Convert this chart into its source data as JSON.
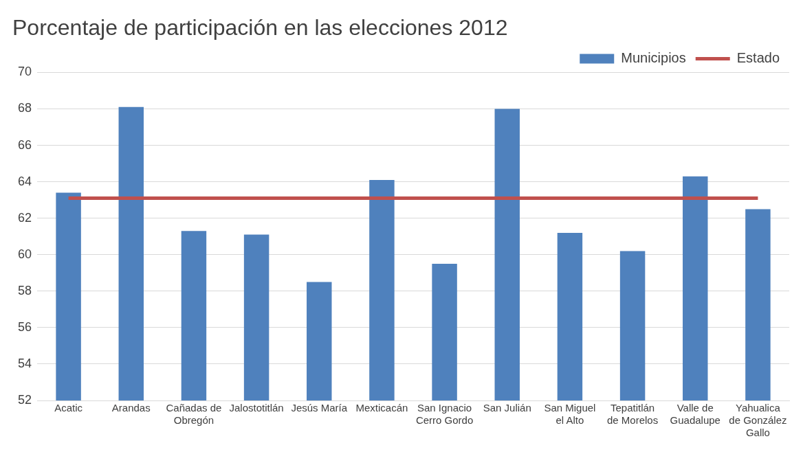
{
  "chart_data": {
    "type": "bar",
    "title": "Porcentaje de participación en las elecciones 2012",
    "categories": [
      "Acatic",
      "Arandas",
      "Cañadas de Obregón",
      "Jalostotitlán",
      "Jesús María",
      "Mexticacán",
      "San Ignacio Cerro Gordo",
      "San Julián",
      "San Miguel el Alto",
      "Tepatitlán de Morelos",
      "Valle de Guadalupe",
      "Yahualica de González Gallo"
    ],
    "series": [
      {
        "name": "Municipios",
        "color": "#4f81bd",
        "values": [
          63.4,
          68.1,
          61.3,
          61.1,
          58.5,
          64.1,
          59.5,
          68.0,
          61.2,
          60.2,
          64.3,
          62.5
        ]
      },
      {
        "name": "Estado",
        "type": "line",
        "color": "#c0504d",
        "values": [
          63.1,
          63.1,
          63.1,
          63.1,
          63.1,
          63.1,
          63.1,
          63.1,
          63.1,
          63.1,
          63.1,
          63.1
        ]
      }
    ],
    "ylim": [
      52,
      70
    ],
    "yticks": [
      52,
      54,
      56,
      58,
      60,
      62,
      64,
      66,
      68,
      70
    ],
    "grid": "y",
    "legend": "top right",
    "marker": "none"
  }
}
